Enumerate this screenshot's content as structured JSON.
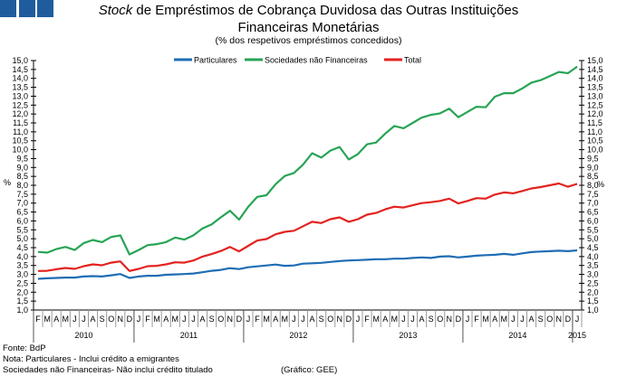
{
  "title": {
    "italic": "Stock",
    "line1_rest": " de Empréstimos de Cobrança Duvidosa das Outras Instituições",
    "line2": "Financeiras Monetárias",
    "subtitle": "(% dos respetivos empréstimos concedidos)"
  },
  "footer": {
    "source": "Fonte: BdP",
    "note1": "Nota: Particulares - Inclui crédito a emigrantes",
    "note2": "Sociedades não Financeiras- Não inclui crédito titulado",
    "credit": "(Gráfico: GEE)"
  },
  "logo_color": "#1f5c9e",
  "chart_data": {
    "type": "line",
    "ylabel": "%",
    "ylabel_right": "%",
    "ylim": [
      1.0,
      15.0
    ],
    "y_ticks": [
      "1,0",
      "1,5",
      "2,0",
      "2,5",
      "3,0",
      "3,5",
      "4,0",
      "4,5",
      "5,0",
      "5,5",
      "6,0",
      "6,5",
      "7,0",
      "7,5",
      "8,0",
      "8,5",
      "9,0",
      "9,5",
      "10,0",
      "10,5",
      "11,0",
      "11,5",
      "12,0",
      "12,5",
      "13,0",
      "13,5",
      "14,0",
      "14,5",
      "15,0"
    ],
    "legend_position": "top-center",
    "grid": false,
    "x": [
      "2010-02",
      "2010-03",
      "2010-04",
      "2010-05",
      "2010-06",
      "2010-07",
      "2010-08",
      "2010-09",
      "2010-10",
      "2010-11",
      "2010-12",
      "2011-01",
      "2011-02",
      "2011-03",
      "2011-04",
      "2011-05",
      "2011-06",
      "2011-07",
      "2011-08",
      "2011-09",
      "2011-10",
      "2011-11",
      "2011-12",
      "2012-01",
      "2012-02",
      "2012-03",
      "2012-04",
      "2012-05",
      "2012-06",
      "2012-07",
      "2012-08",
      "2012-09",
      "2012-10",
      "2012-11",
      "2012-12",
      "2013-01",
      "2013-02",
      "2013-03",
      "2013-04",
      "2013-05",
      "2013-06",
      "2013-07",
      "2013-08",
      "2013-09",
      "2013-10",
      "2013-11",
      "2013-12",
      "2014-01",
      "2014-02",
      "2014-03",
      "2014-04",
      "2014-05",
      "2014-06",
      "2014-07",
      "2014-08",
      "2014-09",
      "2014-10",
      "2014-11",
      "2014-12",
      "2015-01"
    ],
    "month_labels": [
      "F",
      "M",
      "A",
      "M",
      "J",
      "J",
      "A",
      "S",
      "O",
      "N",
      "D",
      "J",
      "F",
      "M",
      "A",
      "M",
      "J",
      "J",
      "A",
      "S",
      "O",
      "N",
      "D",
      "J",
      "F",
      "M",
      "A",
      "M",
      "J",
      "J",
      "A",
      "S",
      "O",
      "N",
      "D",
      "J",
      "F",
      "M",
      "A",
      "M",
      "J",
      "J",
      "A",
      "S",
      "O",
      "N",
      "D",
      "J",
      "F",
      "M",
      "A",
      "M",
      "J",
      "J",
      "A",
      "S",
      "O",
      "N",
      "D",
      "J"
    ],
    "year_labels": [
      "2010",
      "2011",
      "2012",
      "2013",
      "2014",
      "2015"
    ],
    "series": [
      {
        "name": "Particulares",
        "color": "#1f6db4",
        "values": [
          2.75,
          2.78,
          2.8,
          2.82,
          2.82,
          2.88,
          2.9,
          2.88,
          2.95,
          3.02,
          2.8,
          2.88,
          2.92,
          2.92,
          2.98,
          3.0,
          3.02,
          3.05,
          3.12,
          3.2,
          3.25,
          3.35,
          3.3,
          3.4,
          3.45,
          3.5,
          3.55,
          3.48,
          3.5,
          3.6,
          3.62,
          3.65,
          3.7,
          3.75,
          3.78,
          3.8,
          3.82,
          3.85,
          3.85,
          3.88,
          3.88,
          3.92,
          3.95,
          3.92,
          4.0,
          4.02,
          3.95,
          4.0,
          4.05,
          4.08,
          4.1,
          4.15,
          4.1,
          4.18,
          4.25,
          4.28,
          4.3,
          4.33,
          4.3,
          4.35
        ]
      },
      {
        "name": "Sociedades não Financeiras",
        "color": "#27a455",
        "values": [
          4.26,
          4.22,
          4.42,
          4.54,
          4.37,
          4.76,
          4.93,
          4.81,
          5.1,
          5.19,
          4.12,
          4.37,
          4.64,
          4.7,
          4.81,
          5.07,
          4.95,
          5.19,
          5.58,
          5.81,
          6.2,
          6.57,
          6.07,
          6.8,
          7.35,
          7.44,
          8.06,
          8.52,
          8.69,
          9.16,
          9.8,
          9.55,
          9.95,
          10.15,
          9.45,
          9.75,
          10.3,
          10.4,
          10.9,
          11.33,
          11.2,
          11.5,
          11.8,
          11.95,
          12.04,
          12.3,
          11.82,
          12.12,
          12.41,
          12.38,
          12.97,
          13.17,
          13.17,
          13.44,
          13.76,
          13.9,
          14.12,
          14.36,
          14.29,
          14.66
        ]
      },
      {
        "name": "Total",
        "color": "#e2231f",
        "values": [
          3.19,
          3.2,
          3.29,
          3.36,
          3.31,
          3.46,
          3.56,
          3.51,
          3.66,
          3.73,
          3.19,
          3.31,
          3.46,
          3.48,
          3.56,
          3.68,
          3.66,
          3.78,
          4.0,
          4.14,
          4.31,
          4.54,
          4.29,
          4.6,
          4.9,
          4.98,
          5.25,
          5.39,
          5.45,
          5.7,
          5.95,
          5.88,
          6.1,
          6.2,
          5.95,
          6.1,
          6.35,
          6.45,
          6.65,
          6.8,
          6.75,
          6.88,
          7.0,
          7.05,
          7.12,
          7.25,
          6.98,
          7.12,
          7.28,
          7.25,
          7.48,
          7.6,
          7.55,
          7.68,
          7.82,
          7.9,
          8.0,
          8.1,
          7.92,
          8.08
        ]
      }
    ]
  }
}
